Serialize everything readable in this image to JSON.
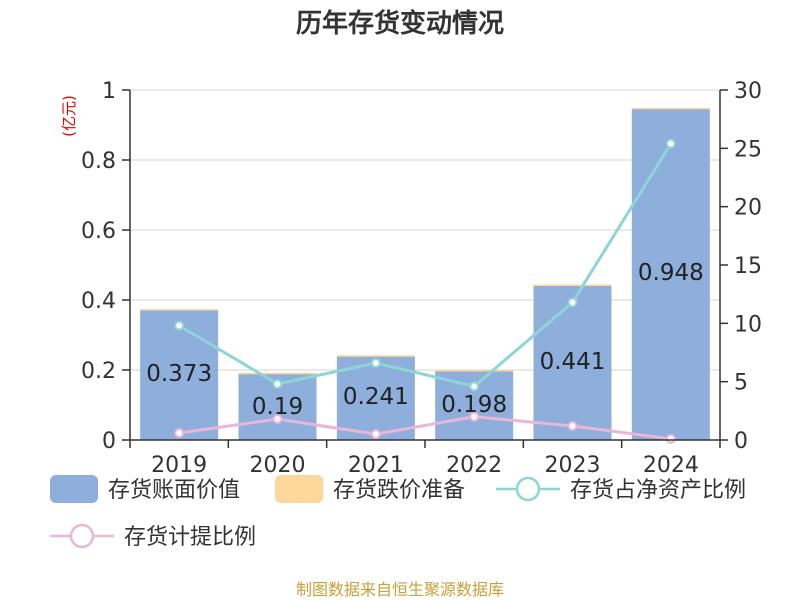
{
  "chart_data": {
    "type": "bar",
    "title": "历年存货变动情况",
    "unit_left": "(亿元)",
    "unit_right": "%",
    "categories": [
      "2019",
      "2020",
      "2021",
      "2022",
      "2023",
      "2024"
    ],
    "series": [
      {
        "name": "存货账面价值",
        "kind": "bar",
        "axis": "left",
        "values": [
          0.373,
          0.19,
          0.241,
          0.198,
          0.441,
          0.948
        ],
        "labels": [
          "0.373",
          "0.19",
          "0.241",
          "0.198",
          "0.441",
          "0.948"
        ]
      },
      {
        "name": "存货跌价准备",
        "kind": "bar-stack",
        "axis": "left",
        "values": [
          0.001,
          0.002,
          0.001,
          0.002,
          0.003,
          0.001
        ]
      },
      {
        "name": "存货占净资产比例",
        "kind": "line",
        "axis": "right",
        "values": [
          9.8,
          4.8,
          6.6,
          4.6,
          11.8,
          25.4
        ]
      },
      {
        "name": "存货计提比例",
        "kind": "line",
        "axis": "right",
        "values": [
          0.6,
          1.8,
          0.5,
          2.0,
          1.2,
          0.1
        ]
      }
    ],
    "y_left": {
      "min": 0,
      "max": 1,
      "ticks": [
        "0",
        "0.2",
        "0.4",
        "0.6",
        "0.8",
        "1"
      ]
    },
    "y_right": {
      "min": 0,
      "max": 30,
      "ticks": [
        "0",
        "5",
        "10",
        "15",
        "20",
        "25",
        "30"
      ]
    },
    "grid": true,
    "legend_position": "bottom",
    "colors": {
      "bar_value": "#8eaedb",
      "bar_reserve": "#fdd69a",
      "line_ratio": "#8dd5d6",
      "line_provision": "#e8b6d8"
    }
  },
  "source": "制图数据来自恒生聚源数据库"
}
